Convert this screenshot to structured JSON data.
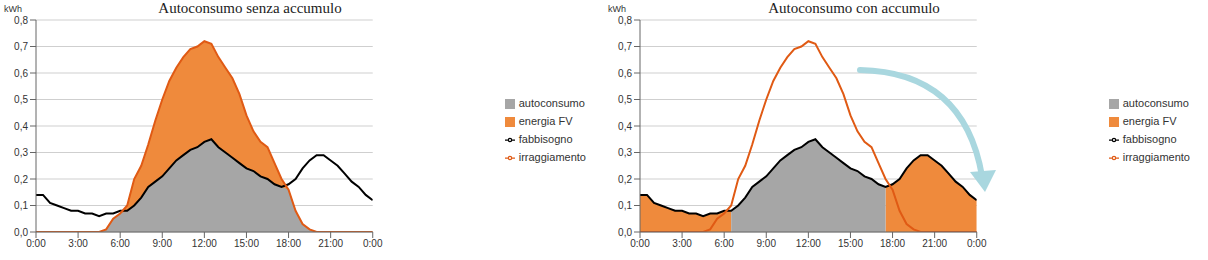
{
  "chart_data": [
    {
      "type": "area",
      "title": "Autoconsumo senza accumulo",
      "y_label": "kWh",
      "x": [
        0,
        0.5,
        1,
        1.5,
        2,
        2.5,
        3,
        3.5,
        4,
        4.5,
        5,
        5.5,
        6,
        6.5,
        7,
        7.5,
        8,
        8.5,
        9,
        9.5,
        10,
        10.5,
        11,
        11.5,
        12,
        12.5,
        13,
        13.5,
        14,
        14.5,
        15,
        15.5,
        16,
        16.5,
        17,
        17.5,
        18,
        18.5,
        19,
        19.5,
        20,
        20.5,
        21,
        21.5,
        22,
        22.5,
        23,
        23.5,
        24
      ],
      "xlim": [
        0,
        24
      ],
      "xticks": [
        {
          "value": 0,
          "label": "0:00"
        },
        {
          "value": 3,
          "label": "3:00"
        },
        {
          "value": 6,
          "label": "6:00"
        },
        {
          "value": 9,
          "label": "9:00"
        },
        {
          "value": 12,
          "label": "12:00"
        },
        {
          "value": 15,
          "label": "15:00"
        },
        {
          "value": 18,
          "label": "18:00"
        },
        {
          "value": 21,
          "label": "21:00"
        },
        {
          "value": 24,
          "label": "0:00"
        }
      ],
      "ylim": [
        0,
        0.8
      ],
      "yticks": [
        {
          "value": 0,
          "label": "0,0"
        },
        {
          "value": 0.1,
          "label": "0,1"
        },
        {
          "value": 0.2,
          "label": "0,2"
        },
        {
          "value": 0.3,
          "label": "0,3"
        },
        {
          "value": 0.4,
          "label": "0,4"
        },
        {
          "value": 0.5,
          "label": "0,5"
        },
        {
          "value": 0.6,
          "label": "0,6"
        },
        {
          "value": 0.7,
          "label": "0,7"
        },
        {
          "value": 0.8,
          "label": "0,8"
        }
      ],
      "grid": true,
      "legend": "right",
      "series": [
        {
          "name": "energia FV",
          "type": "area",
          "color": "#ef8a3c",
          "values": [
            0,
            0,
            0,
            0,
            0,
            0,
            0,
            0,
            0,
            0,
            0.01,
            0.05,
            0.07,
            0.1,
            0.2,
            0.25,
            0.33,
            0.42,
            0.5,
            0.57,
            0.62,
            0.66,
            0.69,
            0.7,
            0.72,
            0.71,
            0.66,
            0.62,
            0.58,
            0.52,
            0.44,
            0.38,
            0.34,
            0.32,
            0.26,
            0.2,
            0.16,
            0.08,
            0.03,
            0.01,
            0,
            0,
            0,
            0,
            0,
            0,
            0,
            0,
            0
          ]
        },
        {
          "name": "autoconsumo",
          "type": "area",
          "color": "#a6a6a6",
          "values": [
            0,
            0,
            0,
            0,
            0,
            0,
            0,
            0,
            0,
            0,
            0.01,
            0.05,
            0.07,
            0.08,
            0.1,
            0.13,
            0.17,
            0.19,
            0.21,
            0.24,
            0.27,
            0.29,
            0.31,
            0.32,
            0.34,
            0.35,
            0.32,
            0.3,
            0.28,
            0.26,
            0.24,
            0.23,
            0.21,
            0.2,
            0.18,
            0.17,
            0.16,
            0.08,
            0.03,
            0.01,
            0,
            0,
            0,
            0,
            0,
            0,
            0,
            0,
            0
          ]
        },
        {
          "name": "fabbisogno",
          "type": "line",
          "color": "#000000",
          "values": [
            0.14,
            0.14,
            0.11,
            0.1,
            0.09,
            0.08,
            0.08,
            0.07,
            0.07,
            0.06,
            0.07,
            0.07,
            0.08,
            0.08,
            0.1,
            0.13,
            0.17,
            0.19,
            0.21,
            0.24,
            0.27,
            0.29,
            0.31,
            0.32,
            0.34,
            0.35,
            0.32,
            0.3,
            0.28,
            0.26,
            0.24,
            0.23,
            0.21,
            0.2,
            0.18,
            0.17,
            0.18,
            0.2,
            0.24,
            0.27,
            0.29,
            0.29,
            0.27,
            0.25,
            0.22,
            0.19,
            0.17,
            0.14,
            0.12
          ]
        },
        {
          "name": "irraggiamento",
          "type": "line",
          "color": "#e05a14",
          "values": [
            0,
            0,
            0,
            0,
            0,
            0,
            0,
            0,
            0,
            0,
            0.01,
            0.05,
            0.07,
            0.1,
            0.2,
            0.25,
            0.33,
            0.42,
            0.5,
            0.57,
            0.62,
            0.66,
            0.69,
            0.7,
            0.72,
            0.71,
            0.66,
            0.62,
            0.58,
            0.52,
            0.44,
            0.38,
            0.34,
            0.32,
            0.26,
            0.2,
            0.16,
            0.08,
            0.03,
            0.01,
            0,
            0,
            0,
            0,
            0,
            0,
            0,
            0,
            0
          ]
        }
      ]
    },
    {
      "type": "area",
      "title": "Autoconsumo con accumulo",
      "y_label": "kWh",
      "x": [
        0,
        0.5,
        1,
        1.5,
        2,
        2.5,
        3,
        3.5,
        4,
        4.5,
        5,
        5.5,
        6,
        6.5,
        7,
        7.5,
        8,
        8.5,
        9,
        9.5,
        10,
        10.5,
        11,
        11.5,
        12,
        12.5,
        13,
        13.5,
        14,
        14.5,
        15,
        15.5,
        16,
        16.5,
        17,
        17.5,
        18,
        18.5,
        19,
        19.5,
        20,
        20.5,
        21,
        21.5,
        22,
        22.5,
        23,
        23.5,
        24
      ],
      "xlim": [
        0,
        24
      ],
      "xticks": [
        {
          "value": 0,
          "label": "0:00"
        },
        {
          "value": 3,
          "label": "3:00"
        },
        {
          "value": 6,
          "label": "6:00"
        },
        {
          "value": 9,
          "label": "9:00"
        },
        {
          "value": 12,
          "label": "12:00"
        },
        {
          "value": 15,
          "label": "15:00"
        },
        {
          "value": 18,
          "label": "18:00"
        },
        {
          "value": 21,
          "label": "21:00"
        },
        {
          "value": 24,
          "label": "0:00"
        }
      ],
      "ylim": [
        0,
        0.8
      ],
      "yticks": [
        {
          "value": 0,
          "label": "0,0"
        },
        {
          "value": 0.1,
          "label": "0,1"
        },
        {
          "value": 0.2,
          "label": "0,2"
        },
        {
          "value": 0.3,
          "label": "0,3"
        },
        {
          "value": 0.4,
          "label": "0,4"
        },
        {
          "value": 0.5,
          "label": "0,5"
        },
        {
          "value": 0.6,
          "label": "0,6"
        },
        {
          "value": 0.7,
          "label": "0,7"
        },
        {
          "value": 0.8,
          "label": "0,8"
        }
      ],
      "grid": true,
      "legend": "right",
      "series": [
        {
          "name": "energia FV",
          "type": "area",
          "color": "#ef8a3c",
          "values": [
            0.14,
            0.14,
            0.11,
            0.1,
            0.09,
            0.08,
            0.08,
            0.07,
            0.07,
            0.06,
            0.07,
            0.07,
            0.08,
            0.08,
            null,
            null,
            null,
            null,
            null,
            null,
            null,
            null,
            null,
            null,
            null,
            null,
            null,
            null,
            null,
            null,
            null,
            null,
            null,
            null,
            null,
            0.17,
            0.18,
            0.2,
            0.24,
            0.27,
            0.29,
            0.29,
            0.27,
            0.25,
            0.22,
            0.19,
            0.17,
            0.14,
            0.12
          ]
        },
        {
          "name": "autoconsumo",
          "type": "area",
          "color": "#a6a6a6",
          "values": [
            null,
            null,
            null,
            null,
            null,
            null,
            null,
            null,
            null,
            null,
            null,
            null,
            null,
            0.08,
            0.1,
            0.13,
            0.17,
            0.19,
            0.21,
            0.24,
            0.27,
            0.29,
            0.31,
            0.32,
            0.34,
            0.35,
            0.32,
            0.3,
            0.28,
            0.26,
            0.24,
            0.23,
            0.21,
            0.2,
            0.18,
            0.17,
            null,
            null,
            null,
            null,
            null,
            null,
            null,
            null,
            null,
            null,
            null,
            null,
            null
          ]
        },
        {
          "name": "fabbisogno",
          "type": "line",
          "color": "#000000",
          "values": [
            0.14,
            0.14,
            0.11,
            0.1,
            0.09,
            0.08,
            0.08,
            0.07,
            0.07,
            0.06,
            0.07,
            0.07,
            0.08,
            0.08,
            0.1,
            0.13,
            0.17,
            0.19,
            0.21,
            0.24,
            0.27,
            0.29,
            0.31,
            0.32,
            0.34,
            0.35,
            0.32,
            0.3,
            0.28,
            0.26,
            0.24,
            0.23,
            0.21,
            0.2,
            0.18,
            0.17,
            0.18,
            0.2,
            0.24,
            0.27,
            0.29,
            0.29,
            0.27,
            0.25,
            0.22,
            0.19,
            0.17,
            0.14,
            0.12
          ]
        },
        {
          "name": "irraggiamento",
          "type": "line",
          "color": "#e05a14",
          "values": [
            0,
            0,
            0,
            0,
            0,
            0,
            0,
            0,
            0,
            0,
            0.01,
            0.05,
            0.07,
            0.1,
            0.2,
            0.25,
            0.33,
            0.42,
            0.5,
            0.57,
            0.62,
            0.66,
            0.69,
            0.7,
            0.72,
            0.71,
            0.66,
            0.62,
            0.58,
            0.52,
            0.44,
            0.38,
            0.34,
            0.32,
            0.26,
            0.2,
            0.16,
            0.08,
            0.03,
            0.01,
            0,
            0,
            0,
            0,
            0,
            0,
            0,
            0,
            0
          ]
        }
      ]
    }
  ]
}
